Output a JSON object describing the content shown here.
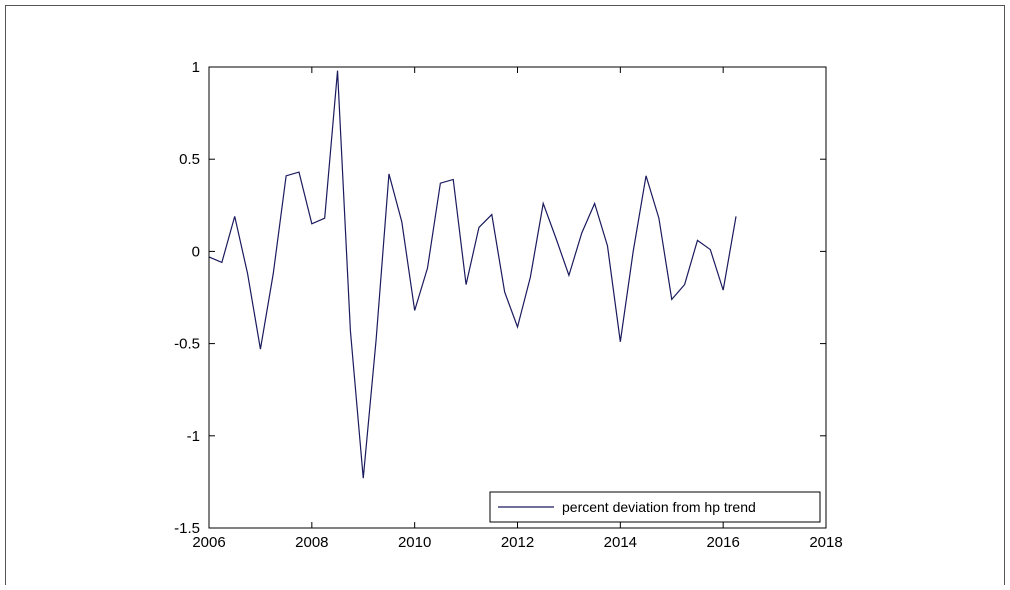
{
  "chart_data": {
    "type": "line",
    "title": "",
    "xlabel": "",
    "ylabel": "",
    "xlim": [
      2006,
      2018
    ],
    "ylim": [
      -1.5,
      1
    ],
    "xticks": [
      "2006",
      "2008",
      "2010",
      "2012",
      "2014",
      "2016",
      "2018"
    ],
    "yticks": [
      "1",
      "0.5",
      "0",
      "-0.5",
      "-1",
      "-1.5"
    ],
    "grid": false,
    "legend_position": "bottom-right",
    "series": [
      {
        "name": "percent deviation from hp trend",
        "color": "#1a1a5e",
        "x": [
          2006.0,
          2006.25,
          2006.5,
          2006.75,
          2007.0,
          2007.25,
          2007.5,
          2007.75,
          2008.0,
          2008.25,
          2008.5,
          2008.75,
          2009.0,
          2009.25,
          2009.5,
          2009.75,
          2010.0,
          2010.25,
          2010.5,
          2010.75,
          2011.0,
          2011.25,
          2011.5,
          2011.75,
          2012.0,
          2012.25,
          2012.5,
          2012.75,
          2013.0,
          2013.25,
          2013.5,
          2013.75,
          2014.0,
          2014.25,
          2014.5,
          2014.75,
          2015.0,
          2015.25,
          2015.5,
          2015.75,
          2016.0,
          2016.25
        ],
        "y": [
          -0.03,
          -0.06,
          0.19,
          -0.12,
          -0.53,
          -0.12,
          0.41,
          0.43,
          0.15,
          0.18,
          0.98,
          -0.43,
          -1.23,
          -0.48,
          0.42,
          0.16,
          -0.32,
          -0.09,
          0.37,
          0.39,
          -0.18,
          0.13,
          0.2,
          -0.22,
          -0.41,
          -0.14,
          0.26,
          0.07,
          -0.13,
          0.1,
          0.26,
          0.03,
          -0.49,
          0.0,
          0.41,
          0.18,
          -0.26,
          -0.18,
          0.06,
          0.01,
          -0.21,
          0.19
        ]
      }
    ]
  }
}
